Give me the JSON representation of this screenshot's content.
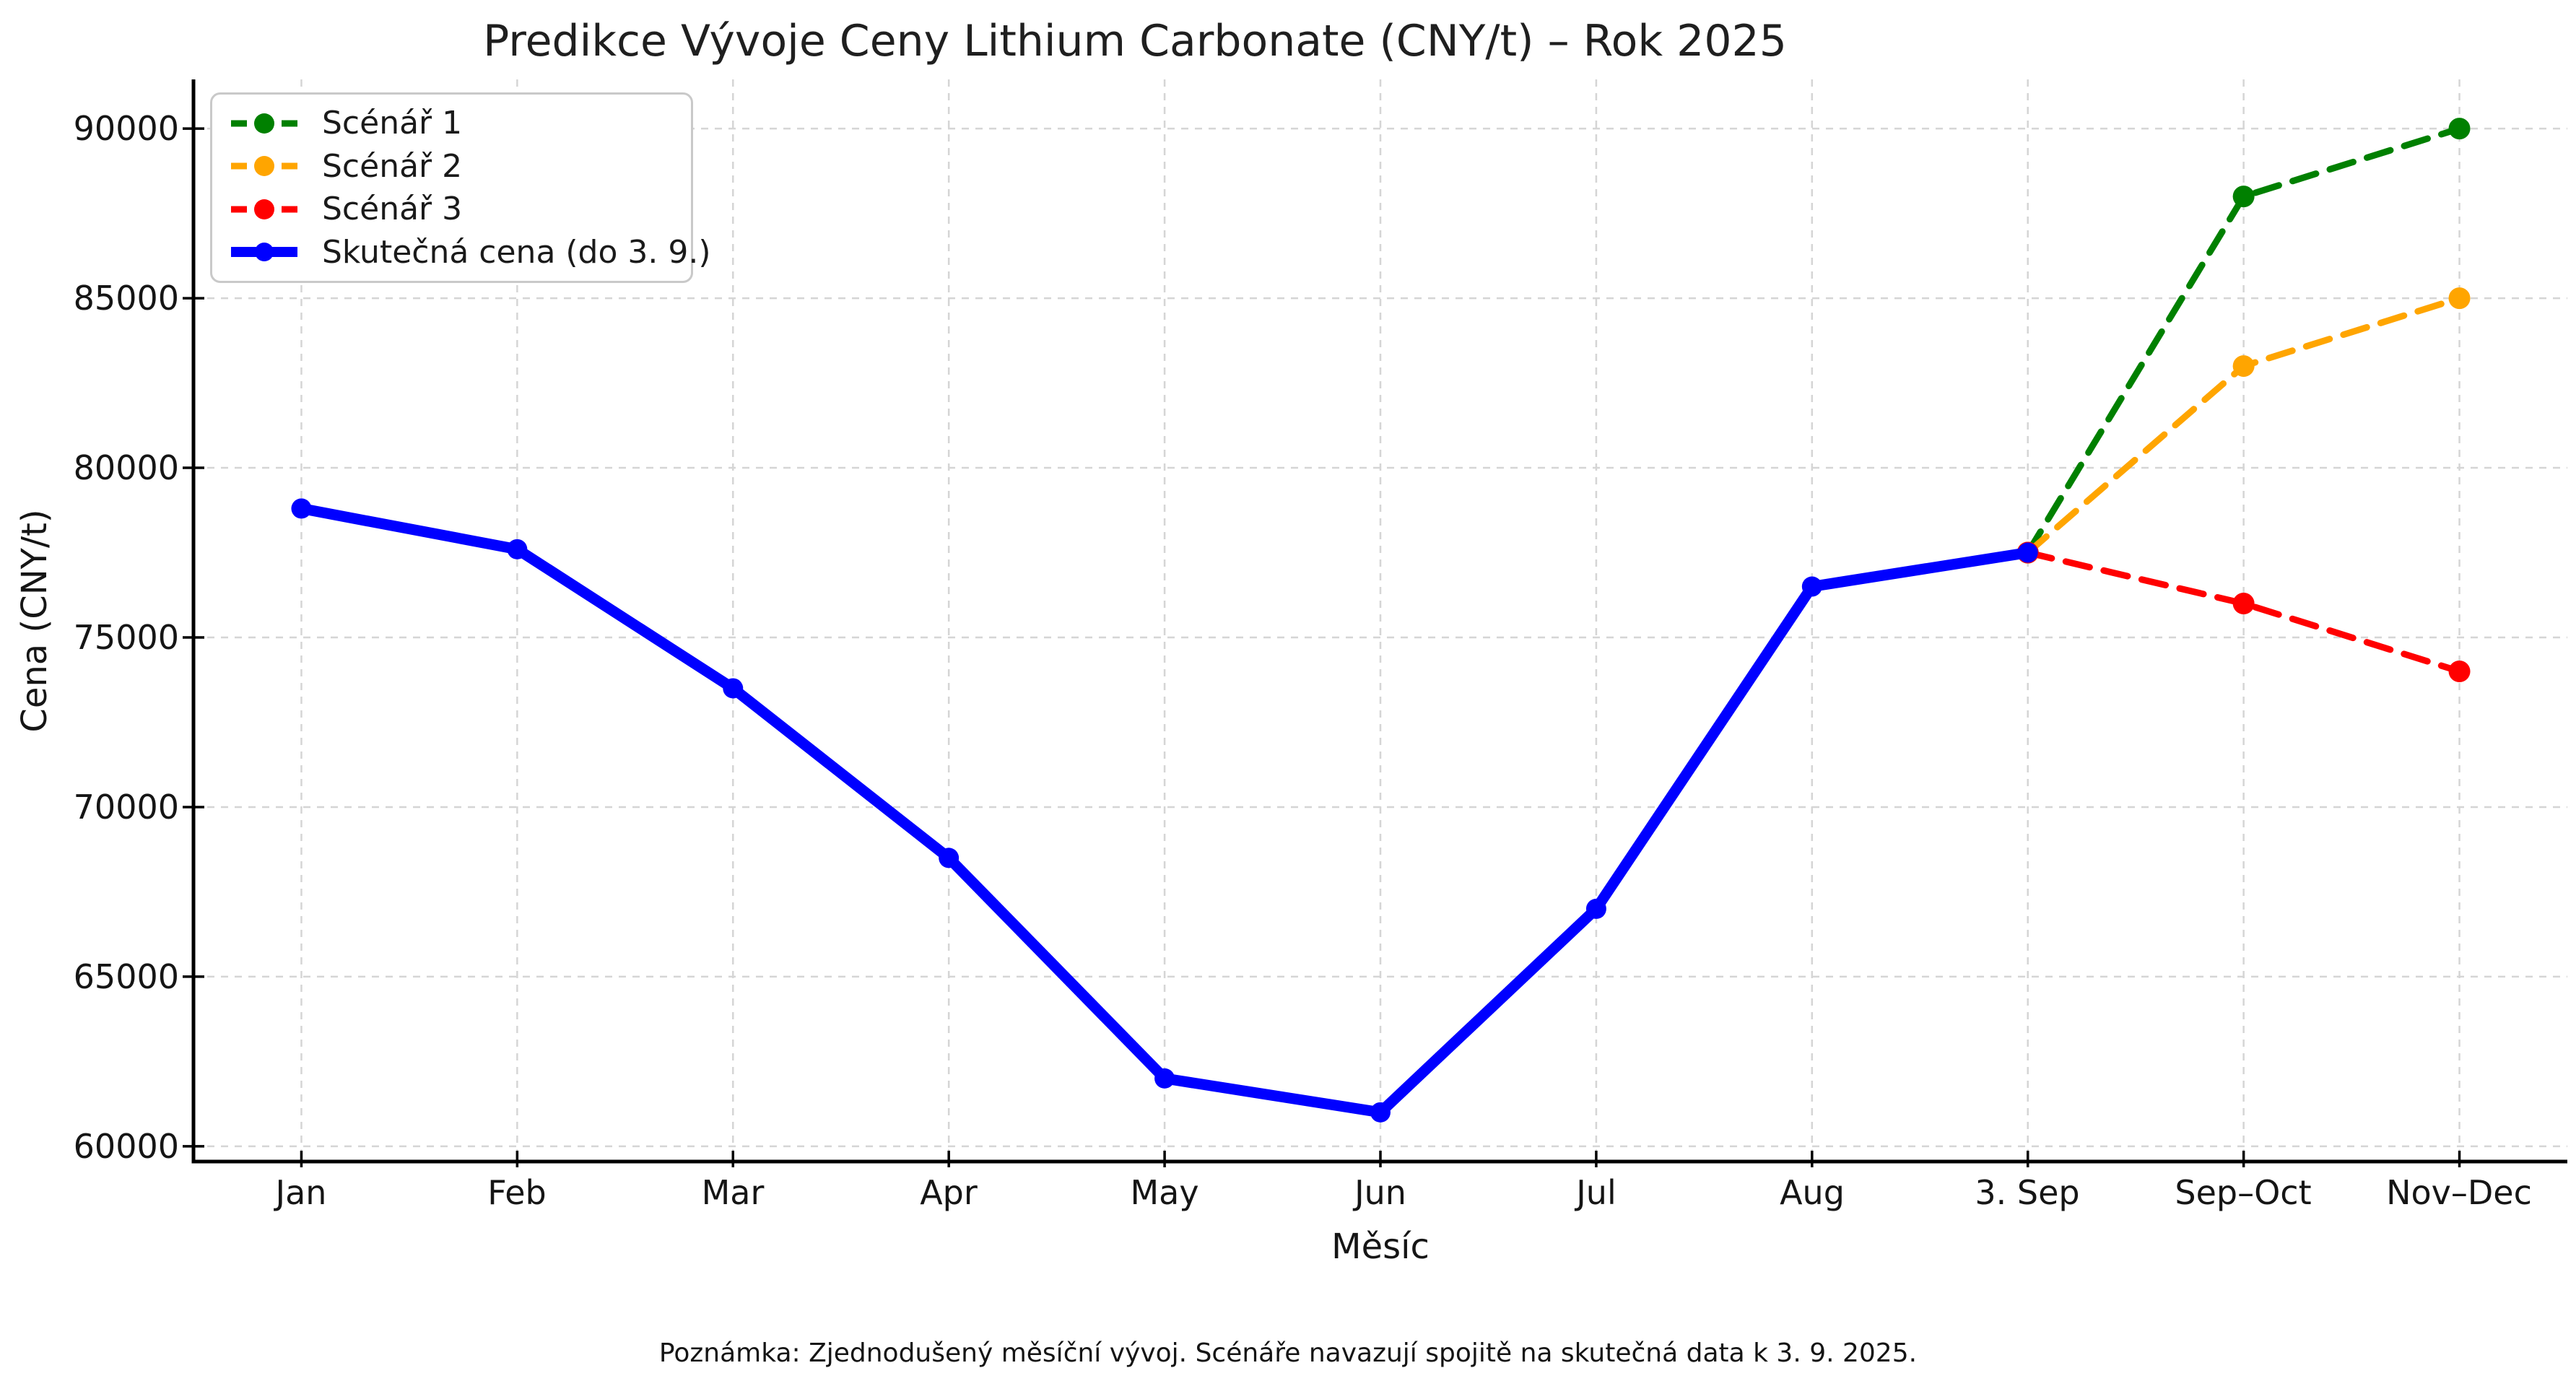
{
  "title": "Predikce Vývoje Ceny Lithium Carbonate (CNY/t) – Rok 2025",
  "footnote": "Poznámka: Zjednodušený měsíční vývoj. Scénáře navazují spojitě na skutečná data k 3. 9. 2025.",
  "colors": {
    "scenario1": "#008000",
    "scenario2": "#ffa500",
    "scenario3": "#ff0000",
    "actual": "#0000ff",
    "grid": "#d5d5d5",
    "axis": "#000000",
    "legend_border": "#c9c9c9"
  },
  "chart_data": {
    "type": "line",
    "title": "Predikce Vývoje Ceny Lithium Carbonate (CNY/t) – Rok 2025",
    "xlabel": "Měsíc",
    "ylabel": "Cena (CNY/t)",
    "x_tick_labels": [
      "Jan",
      "Feb",
      "Mar",
      "Apr",
      "May",
      "Jun",
      "Jul",
      "Aug",
      "3. Sep",
      "Sep–Oct",
      "Nov–Dec"
    ],
    "y_ticks": [
      60000,
      65000,
      70000,
      75000,
      80000,
      85000,
      90000
    ],
    "xlim": [
      -0.5,
      10.5
    ],
    "ylim": [
      59550,
      91450
    ],
    "grid": true,
    "grid_style": "dashed",
    "legend_position": "upper left",
    "series": [
      {
        "name": "Scénář 1",
        "color": "#008000",
        "style": "dashed",
        "x": [
          8,
          9,
          10
        ],
        "values": [
          77500,
          88000,
          90000
        ]
      },
      {
        "name": "Scénář 2",
        "color": "#ffa500",
        "style": "dashed",
        "x": [
          8,
          9,
          10
        ],
        "values": [
          77500,
          83000,
          85000
        ]
      },
      {
        "name": "Scénář 3",
        "color": "#ff0000",
        "style": "dashed",
        "x": [
          8,
          9,
          10
        ],
        "values": [
          77500,
          76000,
          74000
        ]
      },
      {
        "name": "Skutečná cena (do 3. 9.)",
        "color": "#0000ff",
        "style": "solid",
        "x": [
          0,
          1,
          2,
          3,
          4,
          5,
          6,
          7,
          8
        ],
        "values": [
          78800,
          77600,
          73500,
          68500,
          62000,
          61000,
          67000,
          76500,
          77500
        ]
      }
    ]
  }
}
